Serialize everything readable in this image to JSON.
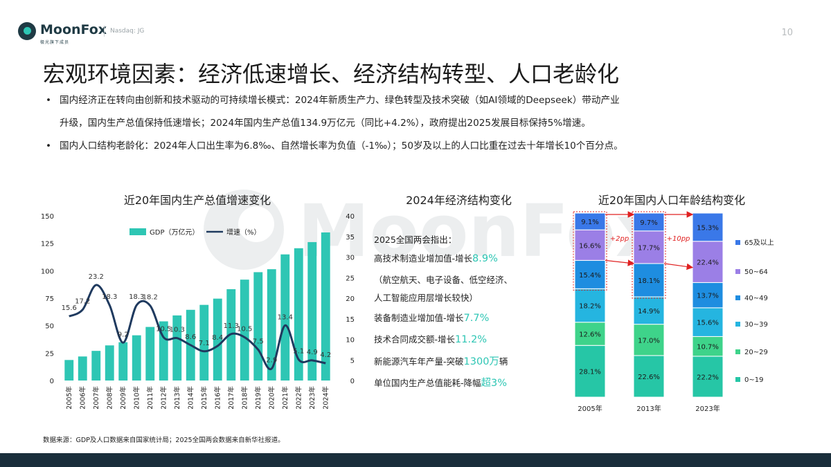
{
  "header": {
    "brand": "MoonFox",
    "brand_tagline": "极光旗下成员",
    "ticker": "Nasdaq: JG",
    "page_number": "10"
  },
  "title": "宏观环境因素：经济低速增长、经济结构转型、人口老龄化",
  "bullets": [
    {
      "line1": "国内经济正在转向由创新和技术驱动的可持续增长模式：2024年新质生产力、绿色转型及技术突破（如AI领域的Deepseek）带动产业",
      "line2": "升级，国内生产总值保持低速增长；2024年国内生产总值134.9万亿元（同比+4.2%），政府提出2025发展目标保持5%增速。"
    },
    {
      "line1": "国内人口结构老龄化：2024年人口出生率为6.8‰、自然增长率为负值（-1‰）；50岁及以上的人口比重在过去十年增长10个百分点。"
    }
  ],
  "watermark": "MoonFox",
  "footer_note": "数据来源：GDP及人口数据来自国家统计局；2025全国两会数据来自新华社报道。",
  "economy_panel": {
    "title": "2024年经济结构变化",
    "heading": "2025全国两会指出：",
    "items": [
      {
        "prefix": "高技术制造业增加值-增长",
        "highlight": "8.9%",
        "suffix": ""
      },
      {
        "prefix": "（航空航天、电子设备、低空经济、",
        "highlight": "",
        "suffix": ""
      },
      {
        "prefix": "人工智能应用层增长较快）",
        "highlight": "",
        "suffix": ""
      },
      {
        "prefix": "装备制造业增加值-增长",
        "highlight": "7.7%",
        "suffix": ""
      },
      {
        "prefix": "技术合同成交额-增长",
        "highlight": "11.2%",
        "suffix": ""
      },
      {
        "prefix": "新能源汽车年产量-突破",
        "highlight": "1300万",
        "suffix": "辆"
      },
      {
        "prefix": "单位国内生产总值能耗-降幅",
        "highlight": "超3%",
        "suffix": ""
      }
    ]
  },
  "colors": {
    "teal": "#2ec6b4",
    "navy_line": "#1f3a5f",
    "accent_red": "#e02020",
    "age_0_19": "#26c6a6",
    "age_20_29": "#3ed38a",
    "age_30_39": "#25b5e0",
    "age_40_49": "#1e8de0",
    "age_50_64": "#9b7fe6",
    "age_65_plus": "#3a78e8"
  },
  "chart_data": [
    {
      "type": "bar+line",
      "title": "近20年国内生产总值增速变化",
      "categories": [
        "2005年",
        "2006年",
        "2007年",
        "2008年",
        "2009年",
        "2010年",
        "2011年",
        "2012年",
        "2013年",
        "2014年",
        "2015年",
        "2016年",
        "2017年",
        "2018年",
        "2019年",
        "2020年",
        "2021年",
        "2022年",
        "2023年",
        "2024年"
      ],
      "series": [
        {
          "name": "GDP（万亿元）",
          "kind": "bar",
          "axis": "left",
          "values": [
            18.7,
            21.9,
            27.0,
            32.0,
            34.9,
            41.2,
            48.8,
            53.9,
            59.3,
            64.4,
            68.9,
            74.6,
            83.2,
            91.9,
            98.7,
            101.4,
            114.9,
            120.5,
            126.1,
            134.9
          ]
        },
        {
          "name": "增速（%）",
          "kind": "line",
          "axis": "right",
          "values": [
            15.6,
            17.2,
            23.2,
            18.3,
            9.2,
            18.3,
            18.2,
            10.5,
            10.3,
            8.6,
            7.1,
            8.4,
            11.3,
            10.5,
            7.5,
            2.9,
            13.4,
            5.1,
            4.9,
            4.2
          ],
          "labels": [
            "15.6",
            "17.2",
            "23.2",
            "18.3",
            "9.2",
            "18.3",
            "18.2",
            "10.5",
            "10.3",
            "8.6",
            "7.1",
            "8.4",
            "11.3",
            "10.5",
            "7.5",
            "2.9",
            "13.4",
            "5.1",
            "4.9",
            "4.2"
          ]
        }
      ],
      "ylim_left": [
        0,
        150
      ],
      "yticks_left": [
        "0",
        "25",
        "50",
        "75",
        "100",
        "125",
        "150"
      ],
      "ylim_right": [
        0,
        40
      ],
      "yticks_right": [
        "0",
        "5",
        "10",
        "15",
        "20",
        "25",
        "30",
        "35",
        "40"
      ],
      "legend": "top"
    },
    {
      "type": "stacked-bar",
      "title": "近20年国内人口年龄结构变化",
      "categories": [
        "2005年",
        "2013年",
        "2023年"
      ],
      "series": [
        {
          "name": "0~19",
          "values": [
            28.1,
            22.6,
            22.2
          ]
        },
        {
          "name": "20~29",
          "values": [
            12.6,
            17.0,
            10.7
          ]
        },
        {
          "name": "30~39",
          "values": [
            18.2,
            14.9,
            15.6
          ]
        },
        {
          "name": "40~49",
          "values": [
            15.4,
            18.1,
            13.7
          ]
        },
        {
          "name": "50~64",
          "values": [
            16.6,
            17.7,
            22.4
          ]
        },
        {
          "name": "65及以上",
          "values": [
            9.1,
            9.7,
            15.3
          ]
        }
      ],
      "value_labels": [
        [
          "28.1%",
          "12.6%",
          "18.2%",
          "15.4%",
          "16.6%",
          "9.1%"
        ],
        [
          "22.6%",
          "17.0%",
          "14.9%",
          "18.1%",
          "17.7%",
          "9.7%"
        ],
        [
          "22.2%",
          "10.7%",
          "15.6%",
          "13.7%",
          "22.4%",
          "15.3%"
        ]
      ],
      "annotations": [
        "+2pp",
        "+10pp"
      ],
      "legend": "right"
    }
  ]
}
